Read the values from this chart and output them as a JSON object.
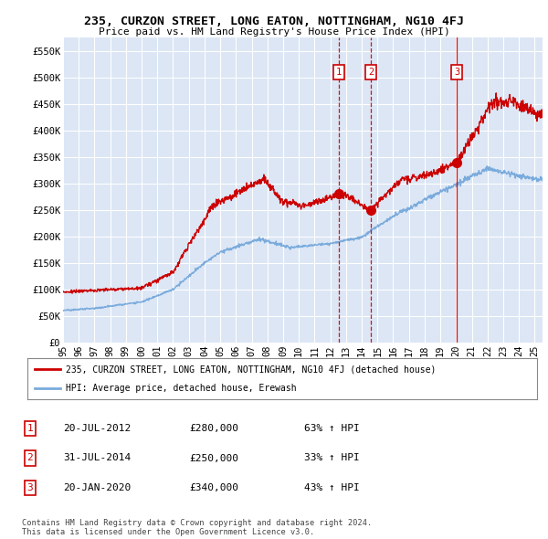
{
  "title": "235, CURZON STREET, LONG EATON, NOTTINGHAM, NG10 4FJ",
  "subtitle": "Price paid vs. HM Land Registry's House Price Index (HPI)",
  "ylabel_ticks": [
    "£0",
    "£50K",
    "£100K",
    "£150K",
    "£200K",
    "£250K",
    "£300K",
    "£350K",
    "£400K",
    "£450K",
    "£500K",
    "£550K"
  ],
  "ylim": [
    0,
    575000
  ],
  "xlim_start": 1995.0,
  "xlim_end": 2025.5,
  "background_color": "#dce6f5",
  "plot_bg_color": "#dce6f5",
  "grid_color": "#ffffff",
  "red_line_color": "#cc0000",
  "blue_line_color": "#7aabdc",
  "transaction_dates": [
    2012.55,
    2014.58,
    2020.05
  ],
  "transaction_prices": [
    280000,
    250000,
    340000
  ],
  "transaction_labels": [
    "1",
    "2",
    "3"
  ],
  "transaction_line_styles": [
    "--",
    "--",
    "-"
  ],
  "legend_line1": "235, CURZON STREET, LONG EATON, NOTTINGHAM, NG10 4FJ (detached house)",
  "legend_line2": "HPI: Average price, detached house, Erewash",
  "table_data": [
    [
      "1",
      "20-JUL-2012",
      "£280,000",
      "63% ↑ HPI"
    ],
    [
      "2",
      "31-JUL-2014",
      "£250,000",
      "33% ↑ HPI"
    ],
    [
      "3",
      "20-JAN-2020",
      "£340,000",
      "43% ↑ HPI"
    ]
  ],
  "footer_text": "Contains HM Land Registry data © Crown copyright and database right 2024.\nThis data is licensed under the Open Government Licence v3.0.",
  "xtick_years": [
    1995,
    1996,
    1997,
    1998,
    1999,
    2000,
    2001,
    2002,
    2003,
    2004,
    2005,
    2006,
    2007,
    2008,
    2009,
    2010,
    2011,
    2012,
    2013,
    2014,
    2015,
    2016,
    2017,
    2018,
    2019,
    2020,
    2021,
    2022,
    2023,
    2024,
    2025
  ]
}
